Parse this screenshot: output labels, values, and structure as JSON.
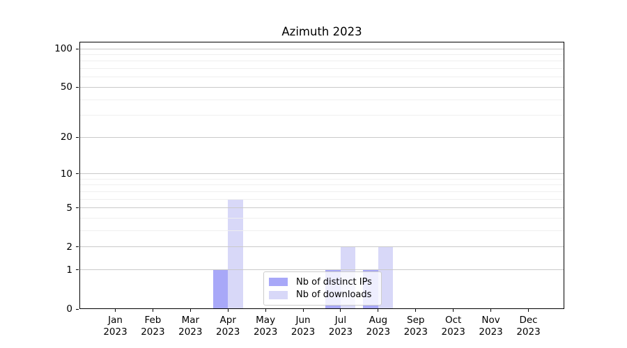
{
  "title": "Azimuth 2023",
  "chart_data": {
    "type": "bar",
    "title": "Azimuth 2023",
    "categories": [
      "Jan",
      "Feb",
      "Mar",
      "Apr",
      "May",
      "Jun",
      "Jul",
      "Aug",
      "Sep",
      "Oct",
      "Nov",
      "Dec"
    ],
    "x_year": "2023",
    "series": [
      {
        "name": "Nb of distinct IPs",
        "color": "#a8a8f8",
        "values": [
          0,
          0,
          0,
          1,
          0,
          0,
          1,
          1,
          0,
          0,
          0,
          0
        ]
      },
      {
        "name": "Nb of downloads",
        "color": "#d8d8f8",
        "values": [
          0,
          0,
          0,
          6,
          0,
          0,
          2,
          2,
          0,
          0,
          0,
          0
        ]
      }
    ],
    "yscale": "log1p",
    "y_major_ticks": [
      0,
      1,
      2,
      5,
      10,
      20,
      50,
      100
    ],
    "y_minor_gridlines": [
      3,
      4,
      6,
      7,
      8,
      9,
      30,
      40,
      60,
      70,
      80,
      90
    ],
    "y_top_value": 113.3,
    "ylim": [
      0,
      113.3
    ],
    "grid": true,
    "legend_position": "lower center"
  },
  "colors": {
    "background": "#ffffff",
    "major_grid": "#c9c9c9",
    "minor_grid": "#efefef",
    "axis": "#000000",
    "text": "#000000",
    "legend_border": "#cccccc"
  }
}
